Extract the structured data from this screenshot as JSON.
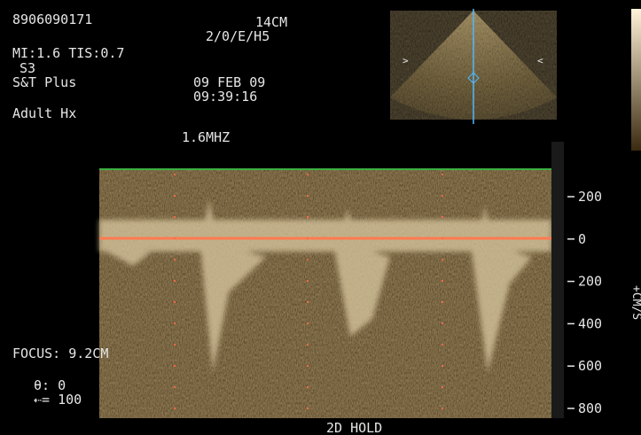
{
  "patient": {
    "id": "8906090171"
  },
  "settings": {
    "mi_tis": "MI:1.6 TIS:0.7",
    "probe": "S3",
    "preset_1": "S&T Plus",
    "preset_2": "Adult Hx",
    "depth": "14CM",
    "mode": "2/0/E/H5",
    "frequency": "1.6MHZ"
  },
  "datetime": {
    "date": "09 FEB  09",
    "time": "09:39:16"
  },
  "doppler": {
    "focus": "FOCUS: 9.2CM",
    "angle": "θ: 0",
    "filter": "⇠= 100",
    "status": "2D HOLD"
  },
  "scale": {
    "labels": [
      "200",
      "0",
      "200",
      "400",
      "600",
      "800"
    ],
    "unit": "+CM/S"
  }
}
